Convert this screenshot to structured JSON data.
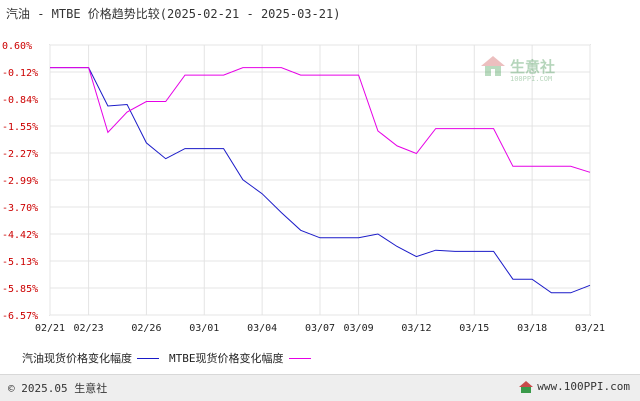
{
  "header": {
    "title": "汽油 - MTBE 价格趋势比较(2025-02-21 - 2025-03-21)"
  },
  "watermark": {
    "brand": "生意社",
    "site": "100PPI.COM"
  },
  "chart_data": {
    "type": "line",
    "title": "汽油 - MTBE 价格趋势比较(2025-02-21 - 2025-03-21)",
    "xlabel": "",
    "ylabel": "",
    "x_tick_labels": [
      "02/21",
      "02/23",
      "02/26",
      "03/01",
      "03/04",
      "03/07",
      "03/09",
      "03/12",
      "03/15",
      "03/18",
      "03/21"
    ],
    "y_tick_labels": [
      "0.60%",
      "-0.12%",
      "-0.84%",
      "-1.55%",
      "-2.27%",
      "-2.99%",
      "-3.70%",
      "-4.42%",
      "-5.13%",
      "-5.85%",
      "-6.57%"
    ],
    "ylim": [
      -6.57,
      0.6
    ],
    "grid": true,
    "legend_position": "bottom",
    "series": [
      {
        "name": "汽油现货价格变化幅度",
        "color": "#1a1ac8",
        "x": [
          "02/21",
          "02/22",
          "02/23",
          "02/24",
          "02/25",
          "02/26",
          "02/27",
          "02/28",
          "03/01",
          "03/02",
          "03/03",
          "03/04",
          "03/05",
          "03/06",
          "03/07",
          "03/08",
          "03/09",
          "03/10",
          "03/11",
          "03/12",
          "03/13",
          "03/14",
          "03/15",
          "03/16",
          "03/17",
          "03/18",
          "03/19",
          "03/20",
          "03/21"
        ],
        "values": [
          0.0,
          0.0,
          0.0,
          -1.02,
          -0.98,
          -2.0,
          -2.42,
          -2.15,
          -2.15,
          -2.15,
          -2.98,
          -3.35,
          -3.85,
          -4.32,
          -4.52,
          -4.52,
          -4.52,
          -4.42,
          -4.75,
          -5.02,
          -4.85,
          -4.88,
          -4.88,
          -4.88,
          -5.62,
          -5.62,
          -5.98,
          -5.98,
          -5.78
        ]
      },
      {
        "name": "MTBE现货价格变化幅度",
        "color": "#e600e6",
        "x": [
          "02/21",
          "02/22",
          "02/23",
          "02/24",
          "02/25",
          "02/26",
          "02/27",
          "02/28",
          "03/01",
          "03/02",
          "03/03",
          "03/04",
          "03/05",
          "03/06",
          "03/07",
          "03/08",
          "03/09",
          "03/10",
          "03/11",
          "03/12",
          "03/13",
          "03/14",
          "03/15",
          "03/16",
          "03/17",
          "03/18",
          "03/19",
          "03/20",
          "03/21"
        ],
        "values": [
          0.0,
          0.0,
          0.0,
          -1.72,
          -1.18,
          -0.9,
          -0.9,
          -0.2,
          -0.2,
          -0.2,
          0.0,
          0.0,
          0.0,
          -0.2,
          -0.2,
          -0.2,
          -0.2,
          -1.68,
          -2.08,
          -2.28,
          -1.62,
          -1.62,
          -1.62,
          -1.62,
          -2.62,
          -2.62,
          -2.62,
          -2.62,
          -2.78
        ]
      }
    ]
  },
  "legend": {
    "items": [
      {
        "label": "汽油现货价格变化幅度",
        "color": "#1a1ac8"
      },
      {
        "label": "MTBE现货价格变化幅度",
        "color": "#e600e6"
      }
    ]
  },
  "footer": {
    "copyright": "© 2025.05 生意社",
    "site_url": "www.100PPI.com"
  }
}
